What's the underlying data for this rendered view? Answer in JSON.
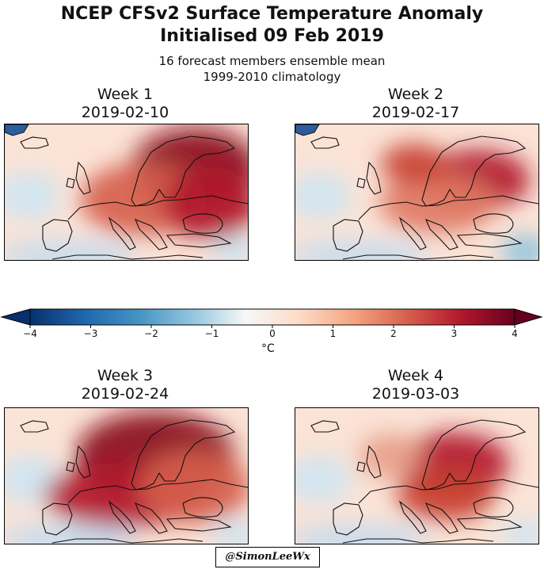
{
  "header": {
    "title_line1": "NCEP CFSv2 Surface Temperature Anomaly",
    "title_line2": "Initialised 09 Feb 2019",
    "subtitle_line1": "16 forecast members ensemble mean",
    "subtitle_line2": "1999-2010 climatology"
  },
  "panels": [
    {
      "week": "Week 1",
      "date": "2019-02-10",
      "intensity": 1.0,
      "focus": "north-east"
    },
    {
      "week": "Week 2",
      "date": "2019-02-17",
      "intensity": 0.8,
      "focus": "east"
    },
    {
      "week": "Week 3",
      "date": "2019-02-24",
      "intensity": 1.0,
      "focus": "north-west"
    },
    {
      "week": "Week 4",
      "date": "2019-03-03",
      "intensity": 0.75,
      "focus": "central"
    }
  ],
  "colorbar": {
    "ticks": [
      "−4",
      "−3",
      "−2",
      "−1",
      "0",
      "1",
      "2",
      "3",
      "4"
    ],
    "min": -4,
    "max": 4,
    "unit": "°C",
    "colors": [
      "#08306b",
      "#2166ac",
      "#4393c3",
      "#92c5de",
      "#f7f7f7",
      "#fddbc7",
      "#f4a582",
      "#d6604d",
      "#b2182b",
      "#67001f"
    ]
  },
  "credit": "@SimonLeeWx"
}
